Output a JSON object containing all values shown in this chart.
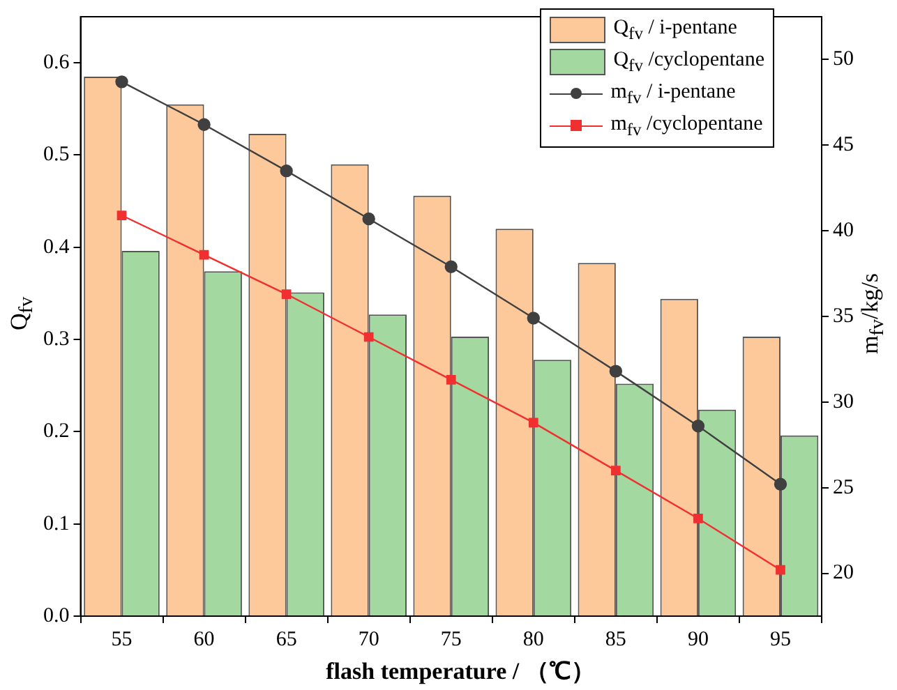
{
  "chart_data": {
    "type": "bar",
    "xlabel": "flash temperature / （℃）",
    "ylabel": "Q$_{fv}$",
    "y2label": "m$_{fv}$/kg/s",
    "categories": [
      "55",
      "60",
      "65",
      "70",
      "75",
      "80",
      "85",
      "90",
      "95"
    ],
    "series": [
      {
        "name": "Q$_{fv}$ / i-pentane",
        "color": "#fdc89a",
        "values": [
          0.585,
          0.555,
          0.523,
          0.49,
          0.456,
          0.42,
          0.383,
          0.344,
          0.303
        ]
      },
      {
        "name": "Q$_{fv}$  /cyclopentane",
        "color": "#a3d9a0",
        "values": [
          0.396,
          0.374,
          0.351,
          0.327,
          0.303,
          0.278,
          0.252,
          0.224,
          0.196
        ]
      },
      {
        "name": "m$_{fv}$ / i-pentane",
        "type": "line",
        "axis": "y2",
        "marker": "circle",
        "color": "#404040",
        "values": [
          48.7,
          46.2,
          43.5,
          40.7,
          37.9,
          34.9,
          31.8,
          28.6,
          25.2
        ]
      },
      {
        "name": "m$_{fv}$ /cyclopentane",
        "type": "line",
        "axis": "y2",
        "marker": "square",
        "color": "#f03030",
        "values": [
          40.9,
          38.6,
          36.3,
          33.8,
          31.3,
          28.8,
          26.0,
          23.2,
          20.2
        ]
      }
    ],
    "ylim": [
      0,
      0.65
    ],
    "yticks": [
      {
        "value": 0,
        "label": "0.0"
      },
      0.1,
      0.2,
      0.3,
      0.4,
      0.5,
      0.6
    ],
    "y2lim": [
      17.5,
      52.5
    ],
    "y2ticks": [
      20,
      25,
      30,
      35,
      40,
      45,
      50
    ],
    "legend": "top right",
    "grid": false
  }
}
